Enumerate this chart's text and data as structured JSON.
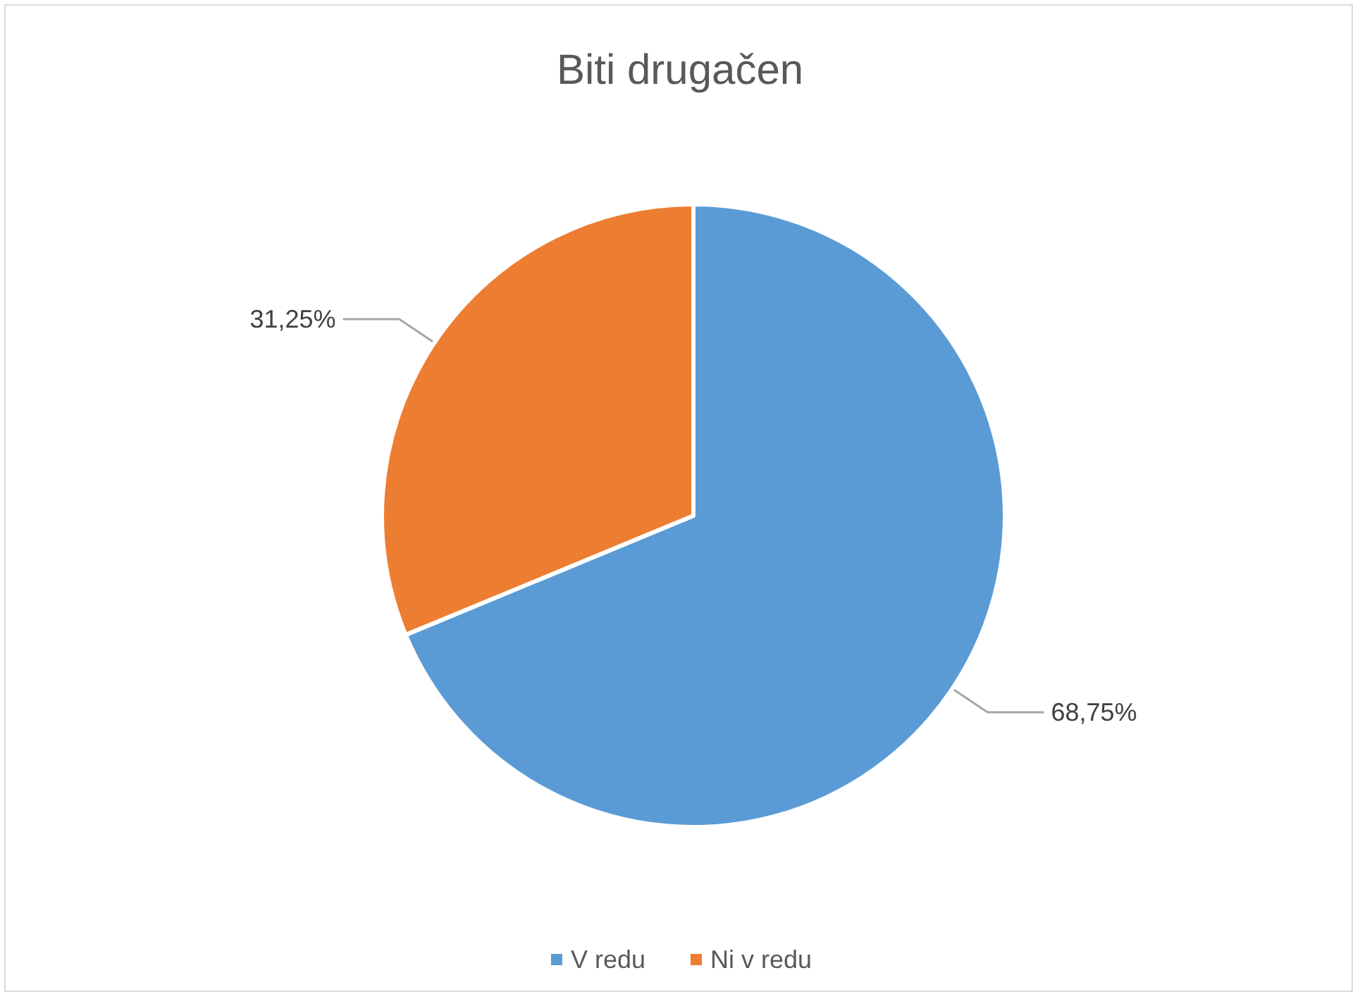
{
  "chart_data": {
    "type": "pie",
    "title": "Biti drugačen",
    "categories": [
      "V redu",
      "Ni v redu"
    ],
    "values": [
      68.75,
      31.25
    ],
    "colors": [
      "#5b9bd5",
      "#ed7d31"
    ],
    "value_labels": [
      "68,75%",
      "31,25%"
    ],
    "legend": "bottom"
  }
}
